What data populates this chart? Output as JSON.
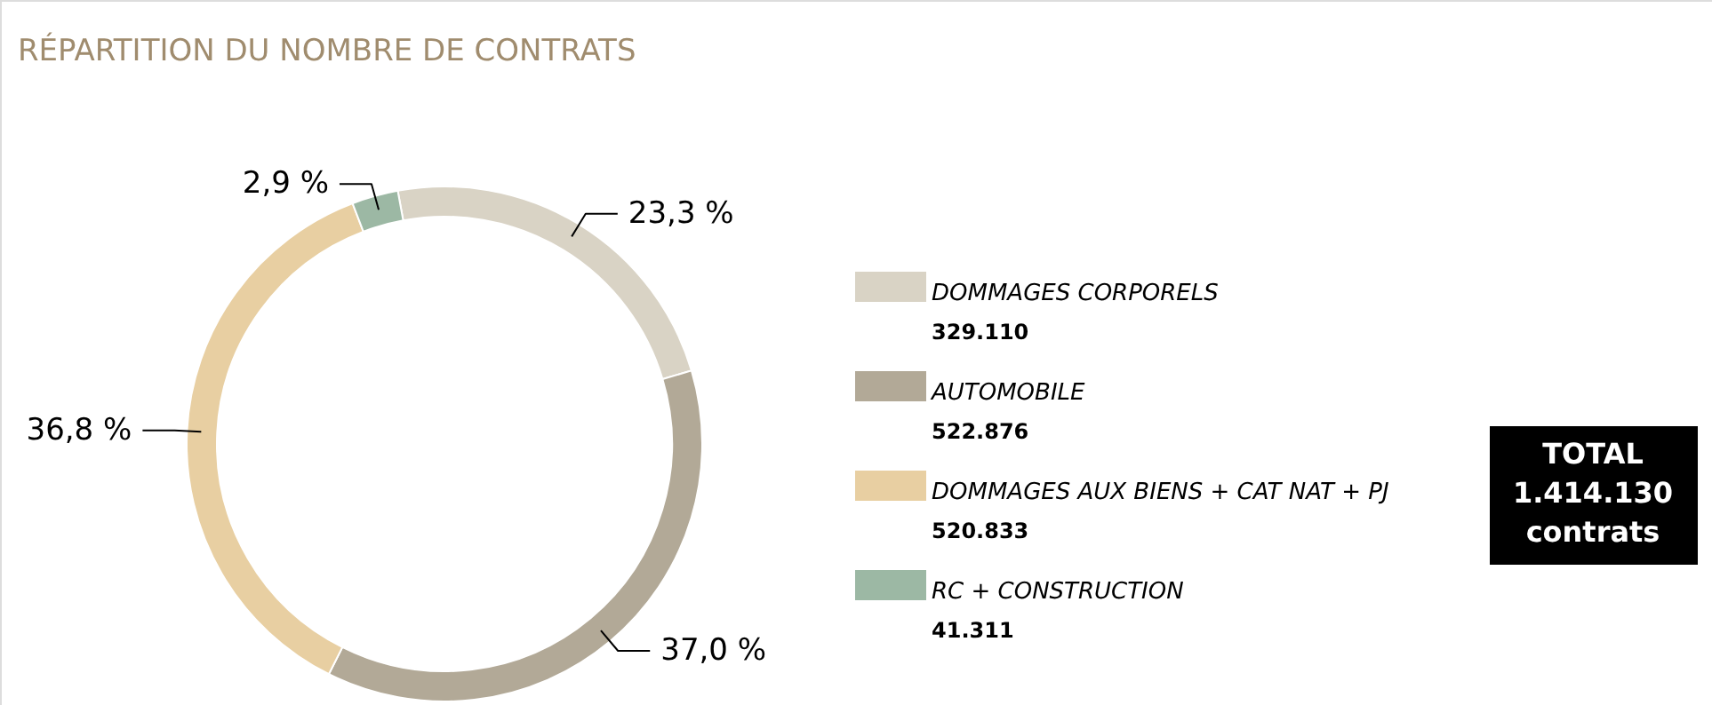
{
  "chart_data": {
    "type": "donut",
    "title": "RÉPARTITION DU NOMBRE DE CONTRATS",
    "categories": [
      "DOMMAGES CORPORELS",
      "AUTOMOBILE",
      "DOMMAGES AUX BIENS + CAT NAT + PJ",
      "RC + CONSTRUCTION"
    ],
    "values": [
      23.3,
      37.0,
      36.8,
      2.9
    ],
    "value_labels": [
      "23,3 %",
      "37,0 %",
      "36,8 %",
      "2,9 %"
    ],
    "colors": [
      "#d9d3c5",
      "#b2a997",
      "#e8cfa2",
      "#9cb8a4"
    ],
    "legend": "right",
    "annotations": [
      "TOTAL\n1.414.130\ncontrats",
      "329.110",
      "522.876",
      "520.833",
      "41.311"
    ]
  }
}
